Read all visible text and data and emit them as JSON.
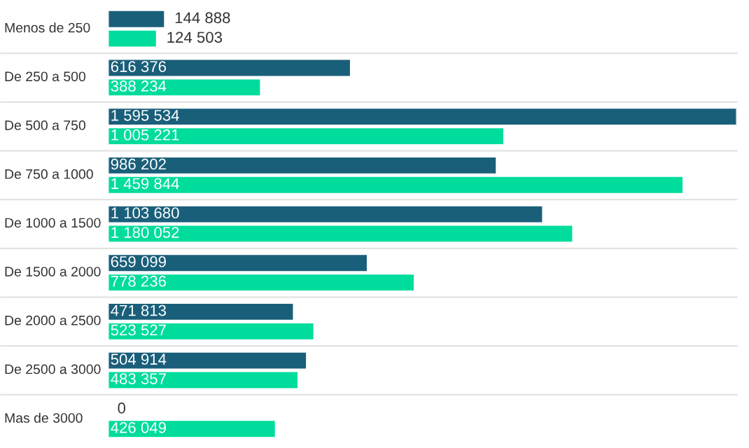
{
  "chart_data": {
    "type": "bar",
    "orientation": "horizontal",
    "categories": [
      "Menos de 250",
      "De 250 a 500",
      "De 500 a 750",
      "De 750 a 1000",
      "De 1000 a 1500",
      "De 1500 a 2000",
      "De 2000 a 2500",
      "De 2500 a 3000",
      "Mas de 3000"
    ],
    "series": [
      {
        "color": "#1a5f7a",
        "values": [
          144888,
          616376,
          1595534,
          986202,
          1103680,
          659099,
          471813,
          504914,
          0
        ],
        "value_labels": [
          "144 888",
          "616 376",
          "1 595 534",
          "986 202",
          "1 103 680",
          "659 099",
          "471 813",
          "504 914",
          "0"
        ]
      },
      {
        "color": "#00dc9c",
        "values": [
          124503,
          388234,
          1005221,
          1459844,
          1180052,
          778236,
          523527,
          483357,
          426049
        ],
        "value_labels": [
          "124 503",
          "388 234",
          "1 005 221",
          "1 459 844",
          "1 180 052",
          "778 236",
          "523 527",
          "483 357",
          "426 049"
        ]
      }
    ],
    "grid": "y",
    "tick_labels": "y",
    "legend": false
  }
}
